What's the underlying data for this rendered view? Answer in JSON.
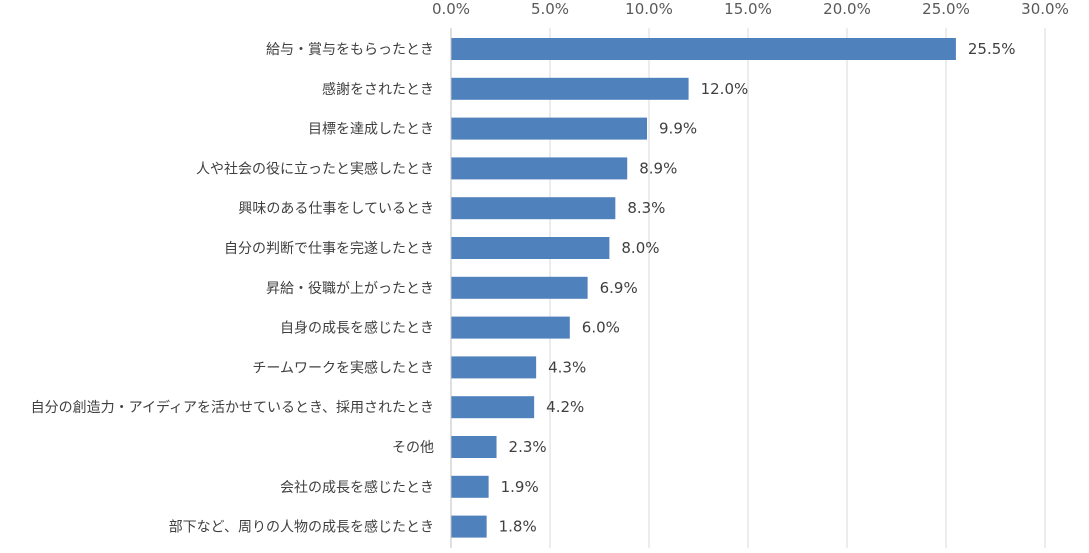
{
  "chart_data": {
    "type": "bar",
    "orientation": "horizontal",
    "categories": [
      "給与・賞与をもらったとき",
      "感謝をされたとき",
      "目標を達成したとき",
      "人や社会の役に立ったと実感したとき",
      "興味のある仕事をしているとき",
      "自分の判断で仕事を完遂したとき",
      "昇給・役職が上がったとき",
      "自身の成長を感じたとき",
      "チームワークを実感したとき",
      "自分の創造力・アイディアを活かせているとき、採用されたとき",
      "その他",
      "会社の成長を感じたとき",
      "部下など、周りの人物の成長を感じたとき"
    ],
    "values": [
      25.5,
      12.0,
      9.9,
      8.9,
      8.3,
      8.0,
      6.9,
      6.0,
      4.3,
      4.2,
      2.3,
      1.9,
      1.8
    ],
    "value_labels": [
      "25.5%",
      "12.0%",
      "9.9%",
      "8.9%",
      "8.3%",
      "8.0%",
      "6.9%",
      "6.0%",
      "4.3%",
      "4.2%",
      "2.3%",
      "1.9%",
      "1.8%"
    ],
    "xlim": [
      0,
      30
    ],
    "x_ticks": [
      0,
      5,
      10,
      15,
      20,
      25,
      30
    ],
    "x_tick_labels": [
      "0.0%",
      "5.0%",
      "10.0%",
      "15.0%",
      "20.0%",
      "25.0%",
      "30.0%"
    ],
    "x_axis_position": "top",
    "grid": true,
    "legend": "none",
    "title": "",
    "xlabel": "",
    "ylabel": "",
    "colors": {
      "bar": "#4f81bd"
    }
  }
}
